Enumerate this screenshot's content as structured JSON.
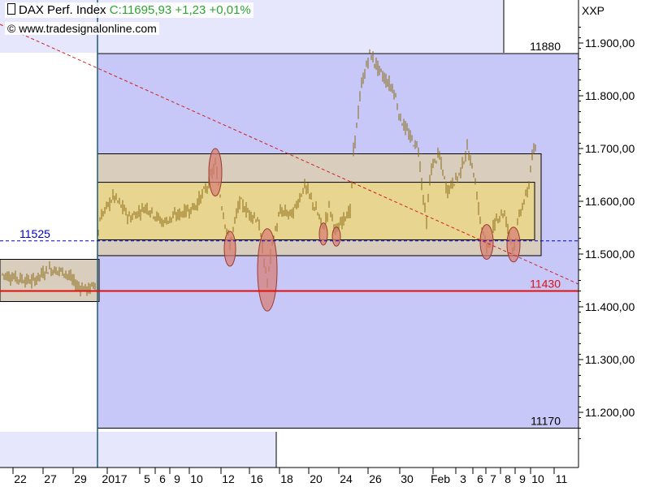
{
  "header": {
    "instrument": "DAX Perf. Index",
    "quote": "C:11695,93 +1,23 +0,01%",
    "copyright": "© www.tradesignalonline.com",
    "exchange": "XXP"
  },
  "chart_data": {
    "type": "candlestick",
    "title": "DAX Perf. Index",
    "ylim": [
      11140,
      11970
    ],
    "y_ticks": [
      "11.900,00",
      "11.800,00",
      "11.700,00",
      "11.600,00",
      "11.500,00",
      "11.400,00",
      "11.300,00",
      "11.200,00"
    ],
    "y_tick_values": [
      11900,
      11800,
      11700,
      11600,
      11500,
      11400,
      11300,
      11200
    ],
    "x_ticks": [
      "22",
      "27",
      "29",
      "2017",
      "5",
      "6",
      "9",
      "10",
      "12",
      "16",
      "18",
      "20",
      "24",
      "26",
      "30",
      "Feb",
      "3",
      "6",
      "7",
      "8",
      "9",
      "10",
      "11"
    ],
    "levels": [
      {
        "label": "11880",
        "value": 11880,
        "color": "#000000"
      },
      {
        "label": "11525",
        "value": 11525,
        "color": "#0000cc",
        "style": "dashed"
      },
      {
        "label": "11430",
        "value": 11430,
        "color": "#e01010"
      },
      {
        "label": "11170",
        "value": 11170,
        "color": "#000000"
      }
    ],
    "series": [
      {
        "segment": "pre-2017",
        "price_range": [
          11410,
          11480
        ]
      },
      {
        "segment": "jan-feb",
        "price_range": [
          11420,
          11890
        ]
      }
    ],
    "colors": {
      "plot_background": "#c8c8f8",
      "outer_box": "#d9cdbd",
      "inner_box": "#e8d590",
      "candles": "#8a6a16",
      "support_line": "#e01010",
      "trend_line": "#d02020",
      "highlight_ellipse": "#d77a70"
    }
  }
}
